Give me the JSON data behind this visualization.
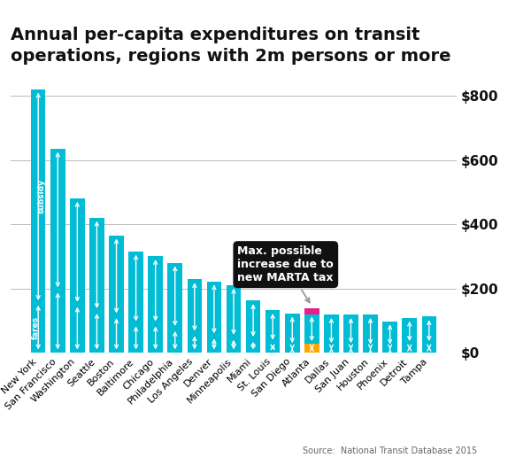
{
  "title": "Annual per-capita expenditures on transit\noperations, regions with 2m persons or more",
  "source": "Source:  National Transit Database 2015",
  "categories": [
    "New York",
    "San Francisco",
    "Washington",
    "Seattle",
    "Boston",
    "Baltimore",
    "Chicago",
    "Philadelphia",
    "Los Angeles",
    "Denver",
    "Minneapolis",
    "Miami",
    "St. Louis",
    "San Diego",
    "Atlanta",
    "Dallas",
    "San Juan",
    "Houston",
    "Phoenix",
    "Detroit",
    "Tampa"
  ],
  "values": [
    820,
    635,
    480,
    420,
    365,
    315,
    300,
    280,
    228,
    222,
    210,
    162,
    132,
    122,
    120,
    118,
    118,
    118,
    98,
    108,
    112
  ],
  "fares": [
    155,
    195,
    150,
    130,
    115,
    90,
    90,
    75,
    60,
    52,
    48,
    42,
    32,
    22,
    32,
    22,
    22,
    18,
    18,
    28,
    28
  ],
  "atlanta_idx": 14,
  "atlanta_teal": 120,
  "atlanta_orange": 28,
  "atlanta_pink": 18,
  "bar_color": "#00BCD4",
  "atlanta_orange_color": "#FFA500",
  "atlanta_pink_color": "#E91E8C",
  "annotation_box_color": "#111111",
  "annotation_text_color": "#ffffff",
  "annotation_text": "Max. possible\nincrease due to\nnew MARTA tax",
  "yticks": [
    0,
    200,
    400,
    600,
    800
  ],
  "ylim": [
    0,
    870
  ],
  "bg_color": "#ffffff",
  "grid_color": "#bbbbbb",
  "title_fontsize": 14,
  "tick_fontsize": 11
}
